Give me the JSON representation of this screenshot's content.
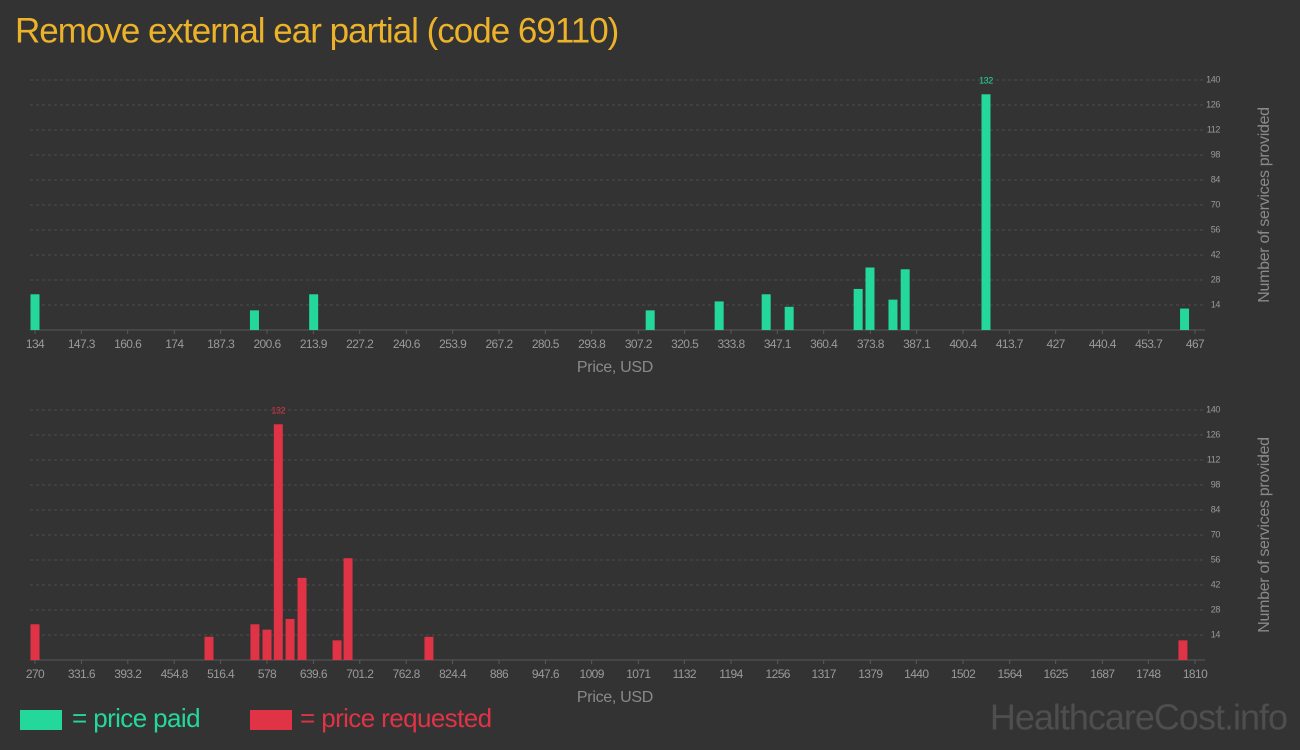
{
  "title": "Remove external ear partial (code 69110)",
  "watermark": "HealthcareCost.info",
  "chart_data": [
    {
      "type": "bar",
      "x_label": "Price, USD",
      "y_label": "Number of services provided",
      "x": [
        134,
        197,
        214,
        310.6,
        330.4,
        343.9,
        350.5,
        370.3,
        373.7,
        380.3,
        383.8,
        407,
        464
      ],
      "series": [
        {
          "name": "= price paid",
          "color": "#24d89c",
          "values": [
            20,
            11,
            20,
            11,
            16,
            20,
            13,
            23,
            35,
            17,
            34,
            132,
            12
          ]
        }
      ],
      "label_max": true,
      "xlim": [
        134,
        467
      ],
      "xticks": [
        134,
        147.3,
        160.6,
        174,
        187.3,
        200.6,
        213.9,
        227.2,
        240.6,
        253.9,
        267.2,
        280.5,
        293.8,
        307.2,
        320.5,
        333.8,
        347.1,
        360.4,
        373.8,
        387.1,
        400.4,
        413.7,
        427,
        440.4,
        453.7,
        467
      ],
      "ylim": [
        0,
        140
      ],
      "yticks": [
        14,
        28,
        42,
        56,
        70,
        84,
        98,
        112,
        126,
        140
      ],
      "grid": true
    },
    {
      "type": "bar",
      "x_label": "Price, USD",
      "y_label": "Number of services provided",
      "x": [
        270,
        501,
        562,
        578,
        593,
        608.6,
        624.5,
        671,
        685.6,
        793,
        1794
      ],
      "series": [
        {
          "name": "= price requested",
          "color": "#e03345",
          "values": [
            20,
            13,
            20,
            17,
            132,
            23,
            46,
            11,
            57,
            13,
            11
          ]
        }
      ],
      "label_max": true,
      "xlim": [
        270,
        1810
      ],
      "xticks": [
        270,
        331.6,
        393.2,
        454.8,
        516.4,
        578,
        639.6,
        701.2,
        762.8,
        824.4,
        886,
        947.6,
        1009,
        1071,
        1132,
        1194,
        1256,
        1317,
        1379,
        1440,
        1502,
        1564,
        1625,
        1687,
        1748,
        1810
      ],
      "ylim": [
        0,
        140
      ],
      "yticks": [
        14,
        28,
        42,
        56,
        70,
        84,
        98,
        112,
        126,
        140
      ],
      "grid": true
    }
  ]
}
